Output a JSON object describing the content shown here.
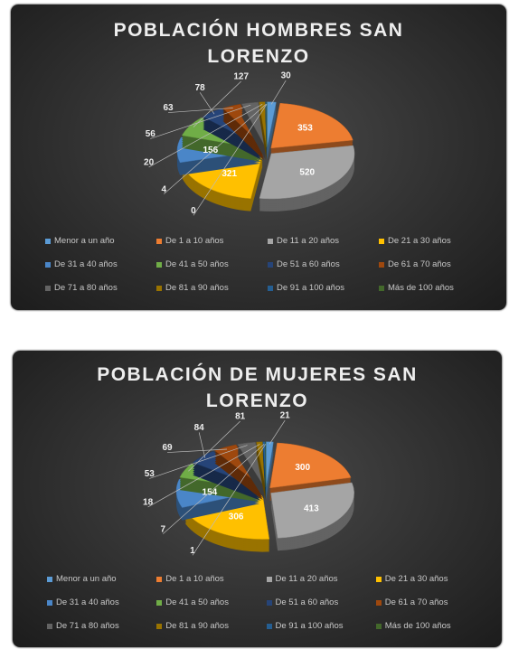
{
  "chart_data": [
    {
      "type": "pie3d",
      "title": "POBLACIÓN HOMBRES SAN LORENZO",
      "categories": [
        "Menor a un año",
        "De 1 a 10 años",
        "De 11 a 20 años",
        "De 21 a 30 años",
        "De 31 a 40 años",
        "De 41 a 50 años",
        "De 51 a 60 años",
        "De 61 a 70 años",
        "De 71 a 80 años",
        "De 81 a 90 años",
        "De 91 a 100 años",
        "Más de 100 años"
      ],
      "values": [
        30,
        353,
        520,
        321,
        156,
        127,
        78,
        63,
        56,
        20,
        4,
        0
      ],
      "colors": [
        "#5b9bd5",
        "#ed7d31",
        "#a5a5a5",
        "#ffc000",
        "#4a86c8",
        "#70ad47",
        "#264478",
        "#9e480e",
        "#636363",
        "#997300",
        "#255e91",
        "#43682b"
      ],
      "legend": "bottom"
    },
    {
      "type": "pie3d",
      "title": "POBLACIÓN DE MUJERES SAN LORENZO",
      "categories": [
        "Menor a un año",
        "De 1 a 10 años",
        "De 11 a 20 años",
        "De 21 a 30 años",
        "De 31 a 40 años",
        "De 41 a 50 años",
        "De 51 a 60 años",
        "De 61 a 70 años",
        "De 71 a 80 años",
        "De 81 a 90 años",
        "De 91 a 100 años",
        "Más de 100 años"
      ],
      "values": [
        21,
        300,
        413,
        306,
        154,
        81,
        84,
        69,
        53,
        18,
        7,
        1
      ],
      "colors": [
        "#5b9bd5",
        "#ed7d31",
        "#a5a5a5",
        "#ffc000",
        "#4a86c8",
        "#70ad47",
        "#264478",
        "#9e480e",
        "#636363",
        "#997300",
        "#255e91",
        "#43682b"
      ],
      "legend": "bottom"
    }
  ]
}
